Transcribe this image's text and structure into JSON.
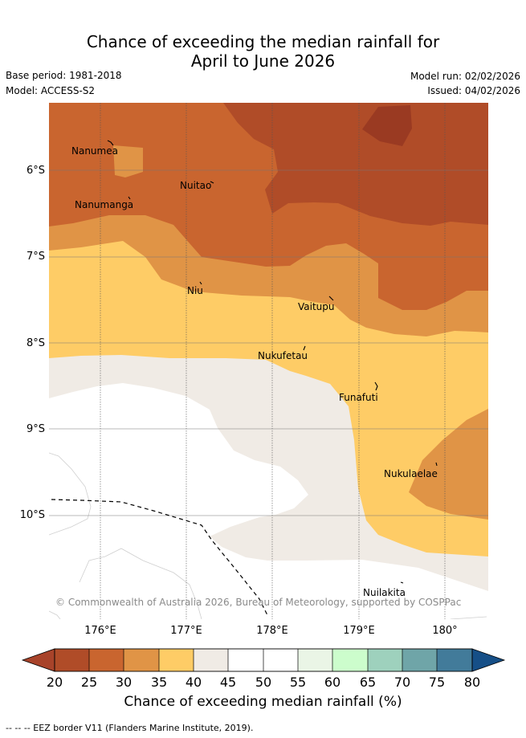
{
  "title_line1": "Chance of exceeding the median rainfall for",
  "title_line2": "April to June 2026",
  "base_period": "Base period: 1981-2018",
  "model": "Model: ACCESS-S2",
  "model_run": "Model run: 02/02/2026",
  "issued": "Issued: 04/02/2026",
  "places": {
    "nanumea": "Nanumea",
    "nuitao": "Nuitao",
    "nanumanga": "Nanumanga",
    "niu": "Niu",
    "vaitupu": "Vaitupu",
    "nukufetau": "Nukufetau",
    "funafuti": "Funafuti",
    "nukulaelae": "Nukulaelae",
    "nuilakita": "Nuilakita"
  },
  "copyright": "© Commonwealth of Australia 2026, Bureau of Meteorology, supported by COSPPac",
  "lat_labels": [
    "6°S",
    "7°S",
    "8°S",
    "9°S",
    "10°S"
  ],
  "lon_labels": [
    "176°E",
    "177°E",
    "178°E",
    "179°E",
    "180°"
  ],
  "colorbar": {
    "ticks": [
      "20",
      "25",
      "30",
      "35",
      "40",
      "45",
      "50",
      "55",
      "60",
      "65",
      "70",
      "75",
      "80"
    ],
    "label": "Chance of exceeding median rainfall (%)",
    "colors": {
      "under": "#a8432a",
      "b20_25": "#b04c28",
      "b25_30": "#c9652f",
      "b30_35": "#e09446",
      "b35_40": "#fecc66",
      "b40_45": "#f0ebe5",
      "b45_50": "#ffffff",
      "b50_55": "#ffffff",
      "b55_60": "#eaf5e6",
      "b60_65": "#ccfdcc",
      "b65_70": "#9ed1bd",
      "b70_75": "#6fa5a8",
      "b75_80": "#427b9a",
      "over": "#164f87"
    }
  },
  "eez_note": "-- -- -- EEZ border V11 (Flanders Marine Institute, 2019)."
}
